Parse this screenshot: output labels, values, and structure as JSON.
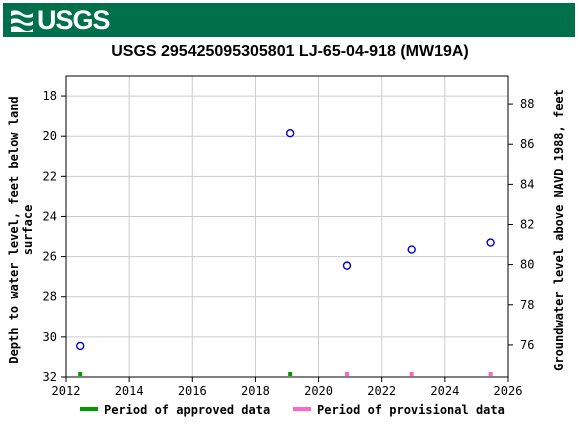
{
  "header": {
    "logo_text": "USGS",
    "logo_icon": "usgs-wave-icon",
    "banner_color": "#00704a"
  },
  "chart_data": {
    "type": "scatter",
    "title": "USGS 295425095305801 LJ-65-04-918 (MW19A)",
    "xlabel": "",
    "ylabel_left": "Depth to water level, feet below land surface",
    "ylabel_right": "Groundwater level above NAVD 1988, feet",
    "xlim": [
      2012,
      2026
    ],
    "ylim_left": [
      32,
      17
    ],
    "ylim_right": [
      74.4,
      89.4
    ],
    "left_inverted": true,
    "x_ticks": [
      "2012",
      "2014",
      "2016",
      "2018",
      "2020",
      "2022",
      "2024",
      "2026"
    ],
    "y_ticks_left": [
      "18",
      "20",
      "22",
      "24",
      "26",
      "28",
      "30",
      "32"
    ],
    "y_ticks_right": [
      "76",
      "78",
      "80",
      "82",
      "84",
      "86",
      "88"
    ],
    "grid": true,
    "series": [
      {
        "name": "",
        "marker": "open-circle",
        "color": "#0000cc",
        "x": [
          2012.45,
          2019.1,
          2020.9,
          2022.95,
          2025.45
        ],
        "y": [
          30.45,
          19.85,
          26.45,
          25.65,
          25.3
        ]
      }
    ],
    "period_markers": [
      {
        "x": 2012.45,
        "status": "approved"
      },
      {
        "x": 2019.1,
        "status": "approved"
      },
      {
        "x": 2020.9,
        "status": "provisional"
      },
      {
        "x": 2022.95,
        "status": "provisional"
      },
      {
        "x": 2025.45,
        "status": "provisional"
      }
    ],
    "legend": {
      "placement": "bottom",
      "items": [
        {
          "label": "Period of approved data",
          "color": "#009900"
        },
        {
          "label": "Period of provisional data",
          "color": "#ff66cc"
        }
      ]
    }
  }
}
